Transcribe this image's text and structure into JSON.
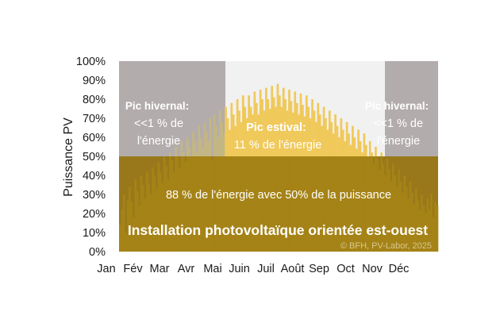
{
  "chart_data": {
    "type": "area",
    "ylabel": "Puissance PV",
    "ylim": [
      0,
      100
    ],
    "yticks": [
      "0%",
      "10%",
      "20%",
      "30%",
      "40%",
      "50%",
      "60%",
      "70%",
      "80%",
      "90%",
      "100%"
    ],
    "months": [
      "Jan",
      "Fév",
      "Mar",
      "Avr",
      "Mai",
      "Juin",
      "Juil",
      "Août",
      "Sep",
      "Oct",
      "Nov",
      "Déc"
    ],
    "threshold_percent": 50,
    "winter_regions_months": [
      [
        0,
        4
      ],
      [
        10,
        12
      ]
    ],
    "daily_peak_percent": [
      14,
      22,
      30,
      10,
      27,
      34,
      26,
      18,
      38,
      32,
      24,
      40,
      35,
      28,
      42,
      36,
      30,
      44,
      40,
      33,
      47,
      42,
      36,
      50,
      45,
      38,
      52,
      48,
      42,
      55,
      50,
      44,
      58,
      52,
      47,
      60,
      55,
      50,
      63,
      58,
      52,
      66,
      60,
      55,
      68,
      63,
      58,
      70,
      48,
      72,
      66,
      60,
      74,
      68,
      62,
      76,
      70,
      64,
      78,
      72,
      66,
      80,
      74,
      68,
      82,
      76,
      70,
      82,
      76,
      72,
      84,
      78,
      72,
      85,
      80,
      74,
      86,
      80,
      75,
      87,
      81,
      76,
      88,
      82,
      76,
      86,
      80,
      74,
      85,
      79,
      73,
      84,
      78,
      72,
      83,
      77,
      71,
      82,
      76,
      70,
      80,
      74,
      68,
      78,
      72,
      66,
      76,
      70,
      64,
      74,
      68,
      62,
      72,
      66,
      60,
      70,
      64,
      58,
      68,
      62,
      56,
      66,
      60,
      54,
      64,
      58,
      52,
      62,
      56,
      50,
      58,
      52,
      46,
      55,
      49,
      43,
      52,
      46,
      40,
      49,
      43,
      37,
      46,
      40,
      34,
      43,
      37,
      31,
      40,
      34,
      28,
      37,
      31,
      25,
      33,
      27,
      22,
      30,
      24,
      20,
      28,
      22,
      30,
      18,
      26,
      24
    ],
    "annotations": {
      "winter_left_title": "Pic hivernal:",
      "winter_left_line1": "<<1 % de",
      "winter_left_line2": "l'énergie",
      "summer_title": "Pic estival:",
      "summer_text": "11 % de l'énergie",
      "winter_right_title": "Pic hivernal:",
      "winter_right_line1": "<<1 % de",
      "winter_right_line2": "l'énergie",
      "lower_text": "88 % de l'énergie avec 50% de la puissance",
      "system_label": "Installation photovoltaïque orientée est-ouest",
      "copyright": "© BFH, PV-Labor, 2025"
    },
    "colors": {
      "winter_bg": "#b3acac",
      "summer_bg": "#f1f1f1",
      "lower_band": "#98781b",
      "upper_summer_fill": "#f0c95b",
      "winter_upper_fill": "#c3b684",
      "lower_fill": "#a58316"
    }
  }
}
